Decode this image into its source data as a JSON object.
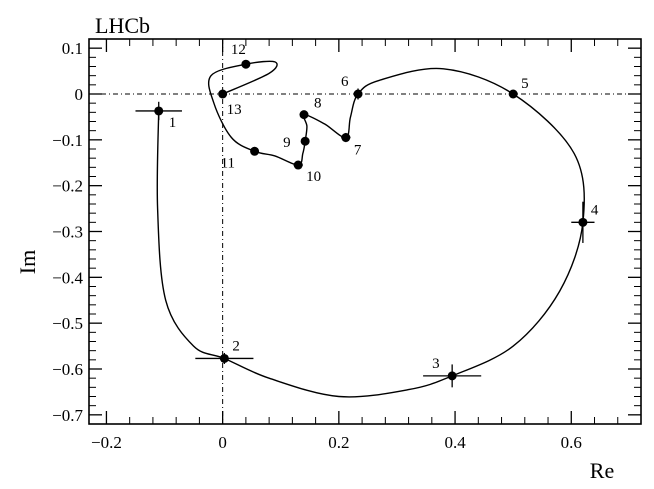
{
  "chart_data": {
    "type": "scatter",
    "title": "LHCb",
    "xlabel": "Re",
    "ylabel": "Im",
    "xlim": [
      -0.23,
      0.72
    ],
    "ylim": [
      -0.72,
      0.12
    ],
    "x_ticks": [
      -0.2,
      0,
      0.2,
      0.4,
      0.6
    ],
    "x_tick_labels": [
      "−0.2",
      "0",
      "0.2",
      "0.4",
      "0.6"
    ],
    "y_ticks": [
      0.1,
      0,
      -0.1,
      -0.2,
      -0.3,
      -0.4,
      -0.5,
      -0.6,
      -0.7
    ],
    "y_tick_labels": [
      "0.1",
      "0",
      "−0.1",
      "−0.2",
      "−0.3",
      "−0.4",
      "−0.5",
      "−0.6",
      "−0.7"
    ],
    "reference_lines": {
      "x": 0,
      "y": 0
    },
    "points": [
      {
        "label": "1",
        "x": -0.11,
        "y": -0.037,
        "xerr": 0.04,
        "yerr": 0.02
      },
      {
        "label": "2",
        "x": 0.003,
        "y": -0.577,
        "xerr": 0.05,
        "yerr": 0.012
      },
      {
        "label": "3",
        "x": 0.395,
        "y": -0.615,
        "xerr": 0.05,
        "yerr": 0.025
      },
      {
        "label": "4",
        "x": 0.62,
        "y": -0.28,
        "xerr": 0.02,
        "yerr": 0.045
      },
      {
        "label": "5",
        "x": 0.5,
        "y": 0.0,
        "xerr": 0.0,
        "yerr": 0.0
      },
      {
        "label": "6",
        "x": 0.233,
        "y": 0.0,
        "xerr": 0.0,
        "yerr": 0.012
      },
      {
        "label": "7",
        "x": 0.212,
        "y": -0.095,
        "xerr": 0.008,
        "yerr": 0.01
      },
      {
        "label": "8",
        "x": 0.14,
        "y": -0.045,
        "xerr": 0.004,
        "yerr": 0.005
      },
      {
        "label": "9",
        "x": 0.142,
        "y": -0.103,
        "xerr": 0.006,
        "yerr": 0.008
      },
      {
        "label": "10",
        "x": 0.13,
        "y": -0.155,
        "xerr": 0.008,
        "yerr": 0.008
      },
      {
        "label": "11",
        "x": 0.055,
        "y": -0.125,
        "xerr": 0.006,
        "yerr": 0.005
      },
      {
        "label": "12",
        "x": 0.04,
        "y": 0.065,
        "xerr": 0.0,
        "yerr": 0.0
      },
      {
        "label": "13",
        "x": 0.0,
        "y": 0.0,
        "xerr": 0.0,
        "yerr": 0.0
      }
    ],
    "curve": [
      [
        -0.11,
        -0.037
      ],
      [
        -0.112,
        -0.25
      ],
      [
        -0.098,
        -0.45
      ],
      [
        -0.05,
        -0.55
      ],
      [
        0.003,
        -0.577
      ],
      [
        0.08,
        -0.62
      ],
      [
        0.2,
        -0.66
      ],
      [
        0.32,
        -0.645
      ],
      [
        0.395,
        -0.615
      ],
      [
        0.5,
        -0.55
      ],
      [
        0.58,
        -0.43
      ],
      [
        0.62,
        -0.28
      ],
      [
        0.605,
        -0.13
      ],
      [
        0.5,
        0.0
      ],
      [
        0.38,
        0.055
      ],
      [
        0.27,
        0.03
      ],
      [
        0.233,
        0.0
      ],
      [
        0.22,
        -0.05
      ],
      [
        0.212,
        -0.095
      ],
      [
        0.175,
        -0.065
      ],
      [
        0.14,
        -0.045
      ],
      [
        0.145,
        -0.07
      ],
      [
        0.142,
        -0.103
      ],
      [
        0.138,
        -0.13
      ],
      [
        0.13,
        -0.155
      ],
      [
        0.09,
        -0.135
      ],
      [
        0.055,
        -0.125
      ],
      [
        0.015,
        -0.095
      ],
      [
        -0.015,
        -0.02
      ],
      [
        -0.02,
        0.04
      ],
      [
        0.04,
        0.065
      ],
      [
        0.09,
        0.07
      ],
      [
        0.08,
        0.045
      ],
      [
        0.0,
        0.0
      ]
    ]
  }
}
